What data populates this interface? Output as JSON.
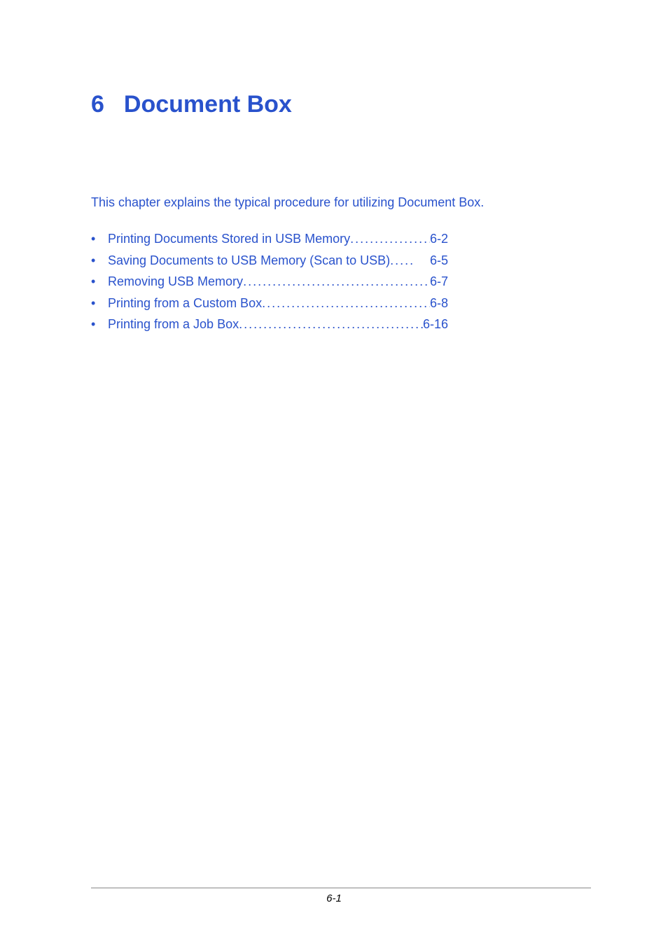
{
  "colors": {
    "accent": "#2952cc",
    "background": "#ffffff",
    "footer_text": "#000000",
    "rule": "#888888"
  },
  "typography": {
    "heading_fontsize": 34,
    "body_fontsize": 18,
    "footer_fontsize": 15
  },
  "chapter": {
    "number": "6",
    "title": "Document Box"
  },
  "intro": "This chapter explains the typical procedure for utilizing Document Box.",
  "toc": {
    "items": [
      {
        "label": "Printing Documents Stored in USB Memory",
        "page": "6-2"
      },
      {
        "label": "Saving Documents to USB Memory (Scan to USB)",
        "page": "6-5"
      },
      {
        "label": "Removing USB Memory",
        "page": "6-7"
      },
      {
        "label": "Printing from a Custom Box",
        "page": "6-8"
      },
      {
        "label": "Printing from a Job Box",
        "page": "6-16"
      }
    ]
  },
  "footer": {
    "page_number": "6-1"
  }
}
